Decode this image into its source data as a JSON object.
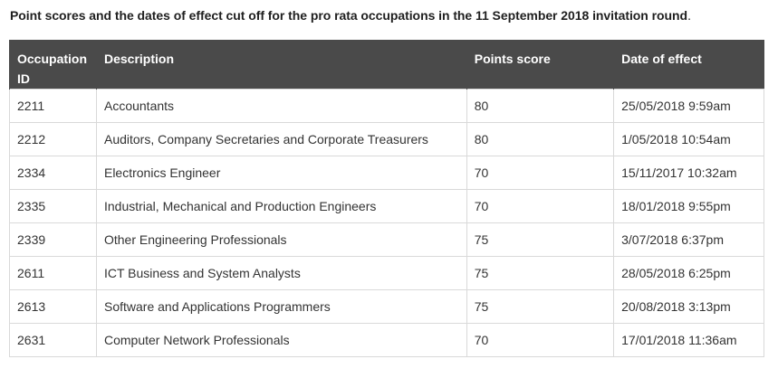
{
  "caption": {
    "text": "Point scores and the dates of effect cut off for the pro rata occupations in the 11 September 2018 invitation round",
    "period": "."
  },
  "table": {
    "headers": {
      "occupation_id_line1": "Occupation",
      "occupation_id_line2": "ID",
      "description": "Description",
      "points_score": "Points score",
      "date_of_effect": "Date of effect"
    },
    "rows": [
      {
        "id": "2211",
        "description": "Accountants",
        "points": "80",
        "date": "25/05/2018 9:59am"
      },
      {
        "id": "2212",
        "description": "Auditors, Company Secretaries and Corporate Treasurers",
        "points": "80",
        "date": "1/05/2018 10:54am"
      },
      {
        "id": "2334",
        "description": "Electronics Engineer",
        "points": "70",
        "date": "15/11/2017 10:32am"
      },
      {
        "id": "2335",
        "description": "Industrial, Mechanical and Production Engineers",
        "points": "70",
        "date": "18/01/2018 9:55pm"
      },
      {
        "id": "2339",
        "description": "Other Engineering Professionals",
        "points": "75",
        "date": "3/07/2018 6:37pm"
      },
      {
        "id": "2611",
        "description": "ICT Business and System Analysts",
        "points": "75",
        "date": "28/05/2018 6:25pm"
      },
      {
        "id": "2613",
        "description": "Software and Applications Programmers",
        "points": "75",
        "date": "20/08/2018 3:13pm"
      },
      {
        "id": "2631",
        "description": "Computer Network Professionals",
        "points": "70",
        "date": "17/01/2018 11:36am"
      }
    ]
  },
  "colors": {
    "header_bg": "#4a4a4a",
    "header_text": "#ffffff",
    "border": "#d9d9d9",
    "body_text": "#333333"
  }
}
